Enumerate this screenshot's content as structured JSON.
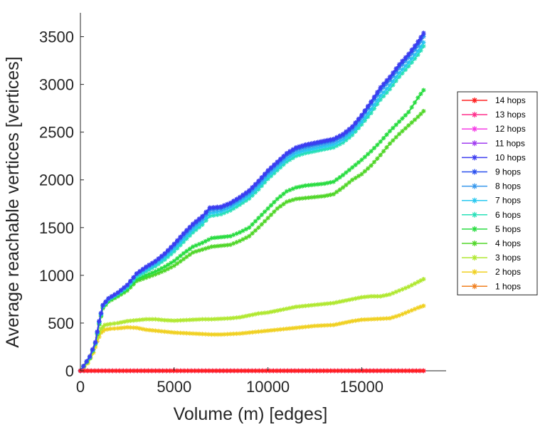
{
  "chart_data": {
    "type": "line",
    "xlabel": "Volume (m) [edges]",
    "ylabel": "Average reachable vertices [vertices]",
    "xlim": [
      0,
      19500
    ],
    "ylim": [
      0,
      3750
    ],
    "xticks": [
      0,
      5000,
      10000,
      15000
    ],
    "yticks": [
      0,
      500,
      1000,
      1500,
      2000,
      2500,
      3000,
      3500
    ],
    "grid": false,
    "legend_position": "right",
    "marker": "asterisk",
    "series": [
      {
        "name": "14 hops",
        "color": "#ff2020",
        "x": [
          0,
          18300
        ],
        "y": [
          0,
          0
        ]
      },
      {
        "name": "13 hops",
        "color": "#ff2f8c",
        "x": [
          0,
          18300
        ],
        "y": [
          0,
          0
        ]
      },
      {
        "name": "12 hops",
        "color": "#f53ce6",
        "x": [
          0,
          18300
        ],
        "y": [
          0,
          0
        ]
      },
      {
        "name": "11 hops",
        "color": "#a03cf0",
        "x": [
          0,
          18300
        ],
        "y": [
          0,
          0
        ]
      },
      {
        "name": "10 hops",
        "color": "#3c3cf0",
        "x": [
          0,
          500,
          800,
          1000,
          1200,
          1500,
          2000,
          2500,
          3000,
          3500,
          4000,
          4500,
          5000,
          5500,
          6000,
          6500,
          6900,
          7500,
          8000,
          8500,
          9000,
          9500,
          10000,
          10500,
          11000,
          11500,
          12000,
          12500,
          13000,
          13500,
          14000,
          14500,
          15000,
          15500,
          16000,
          16500,
          17000,
          17500,
          18000,
          18300
        ],
        "y": [
          0,
          150,
          300,
          520,
          690,
          760,
          820,
          900,
          1020,
          1090,
          1150,
          1230,
          1330,
          1440,
          1540,
          1620,
          1710,
          1720,
          1760,
          1820,
          1890,
          1990,
          2100,
          2190,
          2280,
          2340,
          2370,
          2390,
          2410,
          2430,
          2480,
          2560,
          2680,
          2820,
          2970,
          3080,
          3210,
          3320,
          3450,
          3540
        ]
      },
      {
        "name": "9 hops",
        "color": "#2a50ee",
        "x": [
          0,
          500,
          800,
          1000,
          1200,
          1500,
          2000,
          2500,
          3000,
          3500,
          4000,
          4500,
          5000,
          5500,
          6000,
          6500,
          6900,
          7500,
          8000,
          8500,
          9000,
          9500,
          10000,
          10500,
          11000,
          11500,
          12000,
          12500,
          13000,
          13500,
          14000,
          14500,
          15000,
          15500,
          16000,
          16500,
          17000,
          17500,
          18000,
          18300
        ],
        "y": [
          0,
          148,
          298,
          518,
          688,
          758,
          818,
          898,
          1018,
          1085,
          1145,
          1225,
          1322,
          1430,
          1530,
          1610,
          1700,
          1712,
          1752,
          1812,
          1880,
          1980,
          2090,
          2180,
          2270,
          2330,
          2360,
          2380,
          2400,
          2420,
          2470,
          2550,
          2670,
          2810,
          2955,
          3065,
          3195,
          3305,
          3430,
          3525
        ]
      },
      {
        "name": "8 hops",
        "color": "#3898ec",
        "x": [
          0,
          500,
          800,
          1000,
          1200,
          1500,
          2000,
          2500,
          3000,
          3500,
          4000,
          4500,
          5000,
          5500,
          6000,
          6500,
          6900,
          7500,
          8000,
          8500,
          9000,
          9500,
          10000,
          10500,
          11000,
          11500,
          12000,
          12500,
          13000,
          13500,
          14000,
          14500,
          15000,
          15500,
          16000,
          16500,
          17000,
          17500,
          18000,
          18300
        ],
        "y": [
          0,
          145,
          295,
          515,
          685,
          755,
          815,
          893,
          1012,
          1075,
          1135,
          1212,
          1305,
          1410,
          1510,
          1590,
          1680,
          1695,
          1735,
          1795,
          1862,
          1960,
          2070,
          2160,
          2250,
          2310,
          2340,
          2360,
          2380,
          2400,
          2450,
          2530,
          2650,
          2790,
          2930,
          3040,
          3170,
          3280,
          3400,
          3500
        ]
      },
      {
        "name": "7 hops",
        "color": "#28c8f0",
        "x": [
          0,
          500,
          800,
          1000,
          1200,
          1500,
          2000,
          2500,
          3000,
          3500,
          4000,
          4500,
          5000,
          5500,
          6000,
          6500,
          6900,
          7500,
          8000,
          8500,
          9000,
          9500,
          10000,
          10500,
          11000,
          11500,
          12000,
          12500,
          13000,
          13500,
          14000,
          14500,
          15000,
          15500,
          16000,
          16500,
          17000,
          17500,
          18000,
          18300
        ],
        "y": [
          0,
          142,
          292,
          510,
          680,
          750,
          810,
          885,
          1000,
          1060,
          1115,
          1190,
          1280,
          1380,
          1480,
          1560,
          1650,
          1670,
          1710,
          1770,
          1835,
          1930,
          2040,
          2130,
          2220,
          2280,
          2310,
          2330,
          2350,
          2370,
          2420,
          2500,
          2610,
          2740,
          2880,
          2990,
          3120,
          3230,
          3350,
          3440
        ]
      },
      {
        "name": "6 hops",
        "color": "#28e0b8",
        "x": [
          0,
          500,
          800,
          1000,
          1200,
          1500,
          2000,
          2500,
          3000,
          3500,
          4000,
          4500,
          5000,
          5500,
          6000,
          6500,
          6900,
          7500,
          8000,
          8500,
          9000,
          9500,
          10000,
          10500,
          11000,
          11500,
          12000,
          12500,
          13000,
          13500,
          14000,
          14500,
          15000,
          15500,
          16000,
          16500,
          17000,
          17500,
          18000,
          18300
        ],
        "y": [
          0,
          140,
          290,
          505,
          675,
          745,
          805,
          875,
          985,
          1040,
          1095,
          1165,
          1250,
          1350,
          1450,
          1530,
          1620,
          1640,
          1680,
          1740,
          1805,
          1900,
          2010,
          2100,
          2190,
          2250,
          2280,
          2300,
          2320,
          2340,
          2390,
          2470,
          2580,
          2700,
          2840,
          2950,
          3080,
          3190,
          3310,
          3400
        ]
      },
      {
        "name": "5 hops",
        "color": "#28dc40",
        "x": [
          0,
          500,
          800,
          1000,
          1200,
          1500,
          2000,
          2500,
          3000,
          3500,
          4000,
          4500,
          5000,
          5500,
          6000,
          6500,
          7000,
          7500,
          8000,
          8500,
          9000,
          9500,
          10000,
          10500,
          11000,
          11500,
          12000,
          12500,
          13000,
          13500,
          14000,
          14500,
          15000,
          15500,
          16000,
          16500,
          17000,
          17500,
          18000,
          18300
        ],
        "y": [
          0,
          135,
          285,
          495,
          665,
          735,
          790,
          855,
          960,
          1000,
          1040,
          1090,
          1150,
          1230,
          1300,
          1340,
          1390,
          1400,
          1410,
          1450,
          1500,
          1600,
          1700,
          1800,
          1880,
          1920,
          1940,
          1950,
          1960,
          1980,
          2050,
          2130,
          2210,
          2300,
          2400,
          2510,
          2610,
          2710,
          2860,
          2940
        ]
      },
      {
        "name": "4 hops",
        "color": "#50d628",
        "x": [
          0,
          500,
          800,
          1000,
          1200,
          1500,
          2000,
          2500,
          3000,
          3500,
          4000,
          4500,
          5000,
          5500,
          6000,
          6500,
          7000,
          7500,
          8000,
          8500,
          9000,
          9500,
          10000,
          10500,
          11000,
          11500,
          12000,
          12500,
          13000,
          13500,
          14000,
          14500,
          15000,
          15500,
          16000,
          16500,
          17000,
          17500,
          18000,
          18300
        ],
        "y": [
          0,
          130,
          280,
          485,
          655,
          725,
          780,
          840,
          940,
          975,
          1010,
          1050,
          1100,
          1170,
          1240,
          1270,
          1300,
          1310,
          1320,
          1360,
          1410,
          1500,
          1600,
          1700,
          1770,
          1800,
          1810,
          1820,
          1830,
          1850,
          1920,
          2000,
          2060,
          2150,
          2260,
          2380,
          2480,
          2570,
          2660,
          2720
        ]
      },
      {
        "name": "3 hops",
        "color": "#b0e830",
        "x": [
          0,
          400,
          700,
          900,
          1100,
          1300,
          1600,
          2000,
          2500,
          3000,
          3500,
          4000,
          4500,
          5000,
          5500,
          6000,
          6500,
          7000,
          7500,
          8000,
          8500,
          9000,
          9500,
          10000,
          10500,
          11000,
          11500,
          12000,
          12500,
          13000,
          13500,
          14000,
          14500,
          15000,
          15500,
          16000,
          16500,
          17000,
          17500,
          18000,
          18300
        ],
        "y": [
          0,
          100,
          220,
          350,
          440,
          480,
          490,
          500,
          520,
          530,
          540,
          540,
          530,
          525,
          530,
          535,
          540,
          540,
          545,
          550,
          560,
          580,
          600,
          610,
          630,
          650,
          670,
          680,
          690,
          700,
          710,
          730,
          750,
          770,
          780,
          780,
          800,
          840,
          880,
          930,
          960
        ]
      },
      {
        "name": "2 hops",
        "color": "#f0d020",
        "x": [
          0,
          400,
          700,
          900,
          1100,
          1300,
          1600,
          2000,
          2500,
          3000,
          3500,
          4000,
          4500,
          5000,
          5500,
          6000,
          6500,
          7000,
          7500,
          8000,
          8500,
          9000,
          9500,
          10000,
          10500,
          11000,
          11500,
          12000,
          12500,
          13000,
          13500,
          14000,
          14500,
          15000,
          15500,
          16000,
          16500,
          17000,
          17500,
          18000,
          18300
        ],
        "y": [
          0,
          80,
          190,
          310,
          400,
          430,
          440,
          445,
          455,
          450,
          430,
          420,
          410,
          400,
          395,
          390,
          385,
          380,
          380,
          385,
          390,
          400,
          410,
          420,
          430,
          440,
          450,
          460,
          470,
          475,
          480,
          500,
          520,
          535,
          540,
          545,
          550,
          580,
          620,
          660,
          680
        ]
      },
      {
        "name": "1 hops",
        "color": "#f08020",
        "x": [
          0,
          18300
        ],
        "y": [
          0,
          0
        ]
      }
    ]
  }
}
